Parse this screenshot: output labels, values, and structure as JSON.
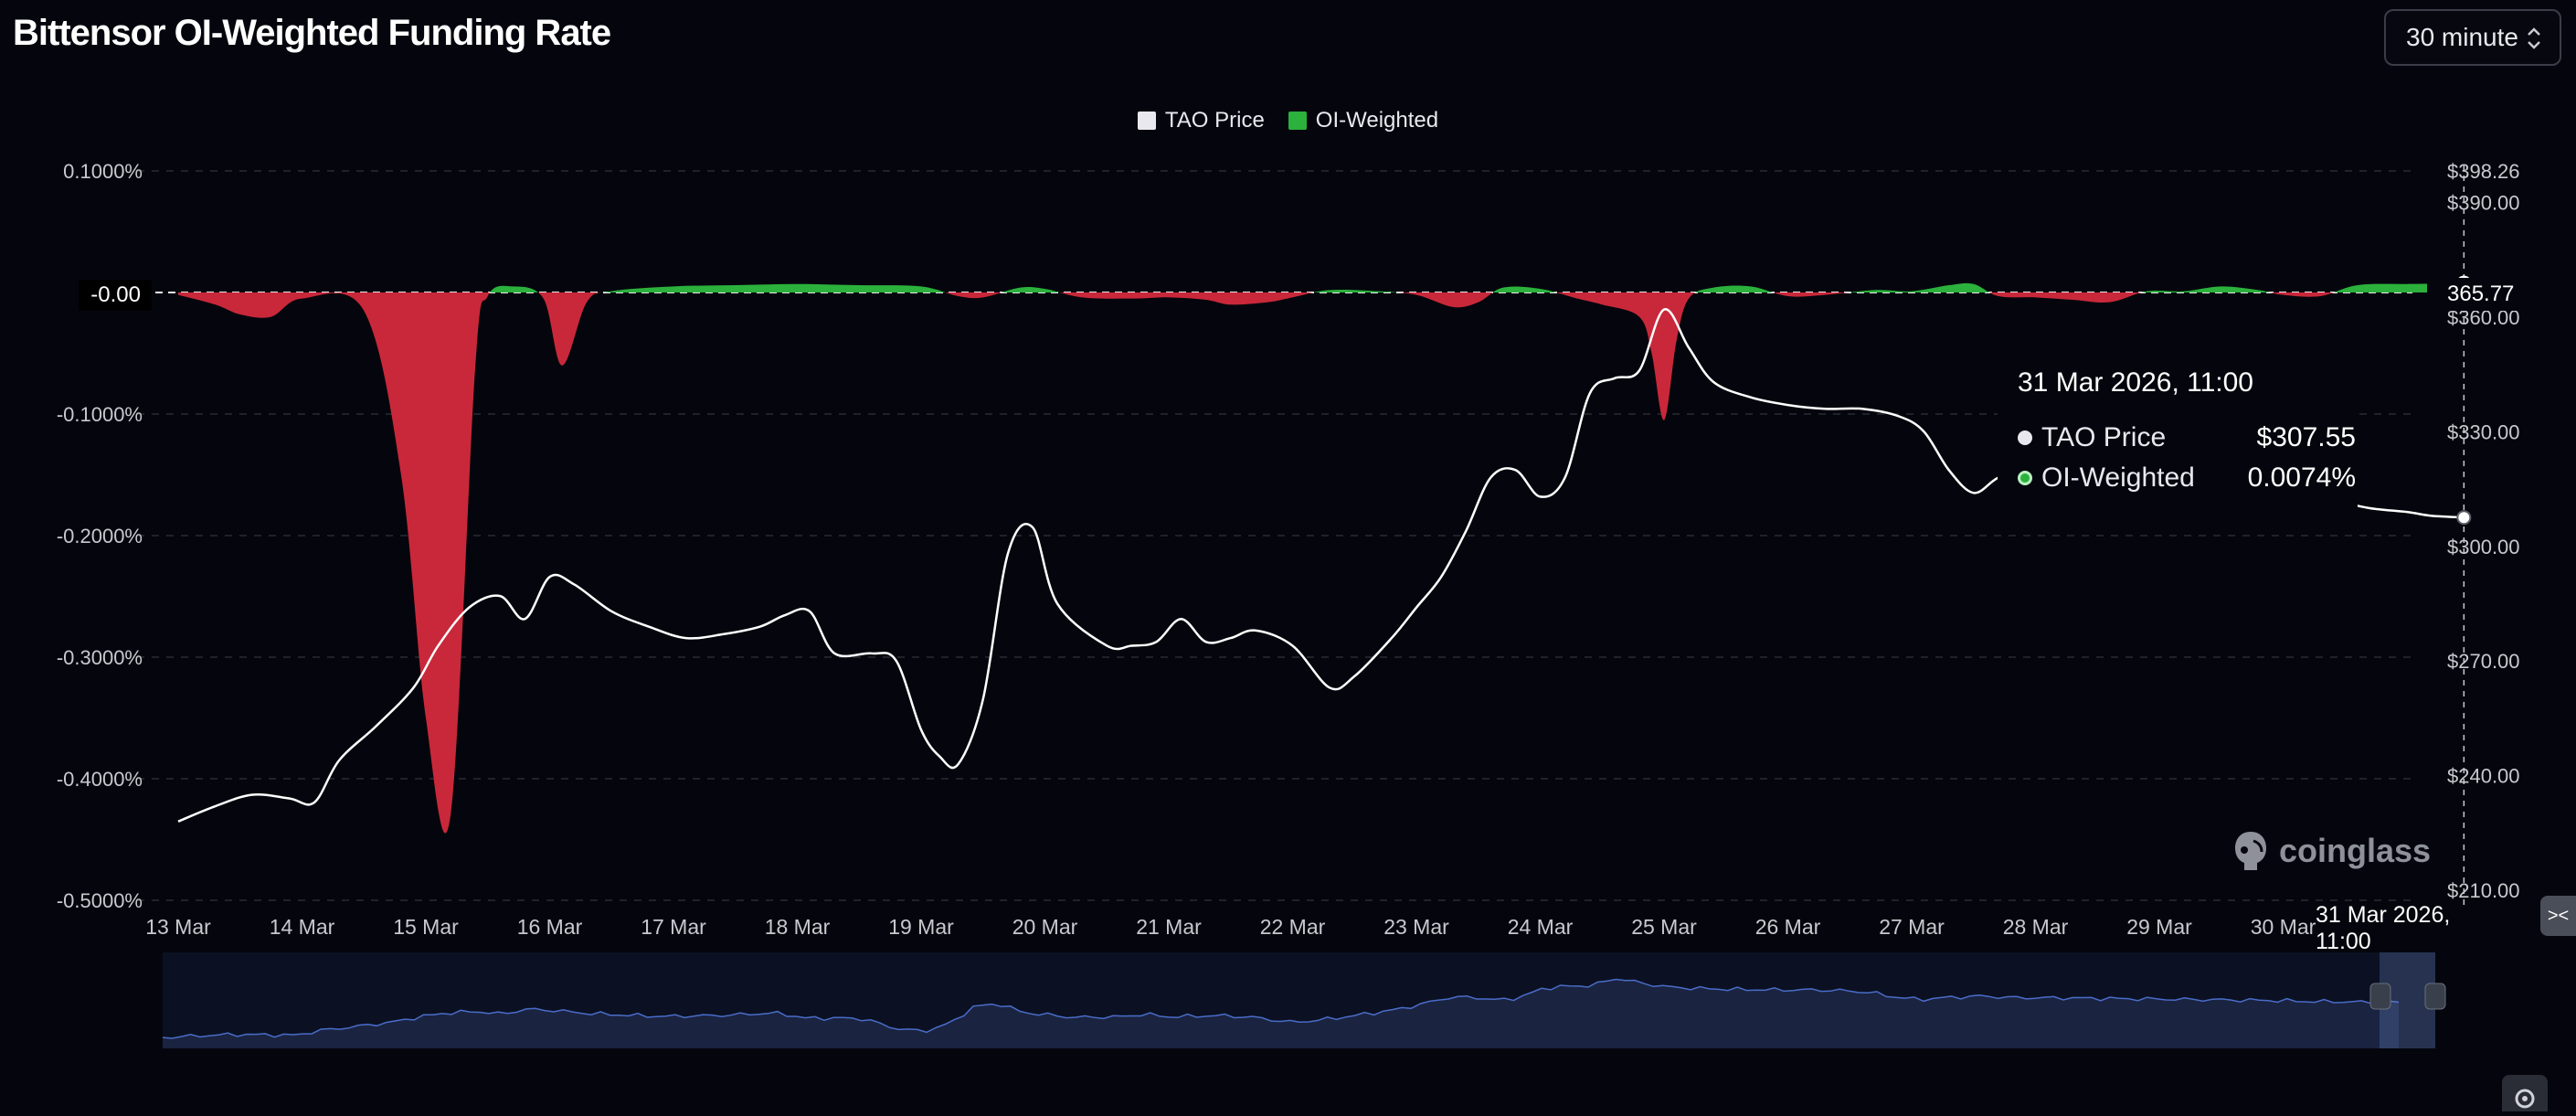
{
  "page": {
    "title": "Bittensor OI-Weighted Funding Rate",
    "interval": "30 minute",
    "brand": "coinglass"
  },
  "colors": {
    "background": "#05060d",
    "price_line": "#ffffff",
    "positive_fill": "#2bb13c",
    "negative_fill": "#c9283a",
    "grid": "#2a2c34",
    "navigator_fill": "#1a2340",
    "navigator_line": "#4a6cc9"
  },
  "icons": [
    "chevron-updown-icon",
    "coinglass-logo-icon",
    "code-icon",
    "gear-icon",
    "drag-handle-icon"
  ],
  "tooltip": {
    "time": "31 Mar 2026, 11:00",
    "rows": [
      {
        "label": "TAO Price",
        "value": "$307.55",
        "color": "#ffffff"
      },
      {
        "label": "OI-Weighted",
        "value": "0.0074%",
        "color": "#2bb13c"
      }
    ]
  },
  "crosshair": {
    "x_label": "31 Mar 2026, 11:00",
    "y_label": "365.77",
    "zero_label": "-0.00"
  },
  "chart_data": {
    "type": "area",
    "title": "Bittensor OI-Weighted Funding Rate",
    "legend": [
      "TAO Price",
      "OI-Weighted"
    ],
    "legend_position": "top-center",
    "grid": true,
    "x_ticks": [
      "13 Mar",
      "14 Mar",
      "15 Mar",
      "16 Mar",
      "17 Mar",
      "18 Mar",
      "19 Mar",
      "20 Mar",
      "21 Mar",
      "22 Mar",
      "23 Mar",
      "24 Mar",
      "25 Mar",
      "26 Mar",
      "27 Mar",
      "28 Mar",
      "29 Mar",
      "30 Mar"
    ],
    "y_left_ticks": [
      "0.1000%",
      "-0.1000%",
      "-0.2000%",
      "-0.3000%",
      "-0.4000%",
      "-0.5000%"
    ],
    "y_left_range": [
      -0.5,
      0.1
    ],
    "y_right_ticks": [
      "$398.26",
      "$390.00",
      "$360.00",
      "$330.00",
      "$300.00",
      "$270.00",
      "$240.00",
      "$210.00"
    ],
    "y_right_range": [
      210,
      398.26
    ],
    "series": [
      {
        "name": "OI-Weighted",
        "unit": "%",
        "x": [
          13.0,
          13.3,
          13.5,
          13.75,
          14.0,
          14.5,
          14.8,
          15.0,
          15.2,
          15.4,
          15.5,
          15.7,
          15.95,
          16.1,
          16.3,
          16.5,
          17.0,
          17.5,
          18.0,
          18.5,
          19.0,
          19.3,
          19.5,
          19.8,
          20.0,
          20.3,
          20.7,
          21.0,
          21.3,
          21.5,
          21.8,
          22.0,
          22.3,
          22.7,
          23.0,
          23.3,
          23.5,
          23.7,
          24.0,
          24.3,
          24.5,
          24.8,
          24.9,
          25.0,
          25.1,
          25.2,
          25.4,
          25.7,
          26.0,
          26.3,
          26.7,
          27.0,
          27.3,
          27.5,
          27.7,
          28.0,
          28.3,
          28.6,
          28.9,
          29.2,
          29.5,
          29.8,
          30.0,
          30.3,
          30.6,
          31.0,
          31.46
        ],
        "values": [
          -0.002,
          -0.01,
          -0.018,
          -0.02,
          -0.005,
          -0.015,
          -0.15,
          -0.35,
          -0.43,
          -0.06,
          -0.003,
          0.005,
          -0.005,
          -0.06,
          -0.008,
          0.001,
          0.005,
          0.006,
          0.007,
          0.006,
          0.005,
          -0.003,
          -0.004,
          0.004,
          0.003,
          -0.004,
          -0.005,
          -0.004,
          -0.006,
          -0.01,
          -0.008,
          -0.004,
          0.002,
          0.001,
          -0.002,
          -0.012,
          -0.008,
          0.004,
          0.003,
          -0.005,
          -0.01,
          -0.02,
          -0.05,
          -0.105,
          -0.04,
          -0.005,
          0.004,
          0.005,
          -0.003,
          -0.002,
          0.002,
          0.001,
          0.006,
          0.007,
          -0.003,
          -0.004,
          -0.006,
          -0.008,
          0.001,
          0.001,
          0.005,
          0.002,
          -0.002,
          -0.003,
          0.006,
          0.007,
          0.0074
        ]
      },
      {
        "name": "TAO Price",
        "unit": "$",
        "x": [
          13.0,
          13.3,
          13.6,
          13.9,
          14.1,
          14.3,
          14.6,
          14.9,
          15.1,
          15.35,
          15.6,
          15.8,
          16.0,
          16.2,
          16.5,
          16.8,
          17.1,
          17.4,
          17.7,
          17.9,
          18.1,
          18.3,
          18.6,
          18.8,
          19.0,
          19.15,
          19.3,
          19.5,
          19.7,
          19.9,
          20.1,
          20.5,
          20.7,
          20.9,
          21.1,
          21.3,
          21.5,
          21.7,
          22.0,
          22.3,
          22.5,
          22.8,
          23.0,
          23.2,
          23.4,
          23.6,
          23.8,
          24.0,
          24.2,
          24.4,
          24.6,
          24.8,
          25.0,
          25.2,
          25.4,
          25.7,
          26.0,
          26.3,
          26.6,
          26.9,
          27.1,
          27.3,
          27.5,
          27.7,
          28.0,
          28.3,
          28.6,
          28.9,
          29.2,
          29.5,
          29.8,
          30.1,
          30.4,
          30.7,
          31.0,
          31.2,
          31.46
        ],
        "values": [
          228,
          232,
          235,
          234,
          233,
          244,
          253,
          263,
          274,
          284,
          287,
          281,
          292,
          290,
          283,
          279,
          276,
          277,
          279,
          282,
          283,
          272,
          272,
          270,
          252,
          245,
          243,
          260,
          298,
          305,
          285,
          274,
          274,
          275,
          281,
          275,
          276,
          278,
          274,
          263,
          266,
          276,
          284,
          292,
          304,
          318,
          320,
          313,
          318,
          340,
          344,
          346,
          362,
          352,
          343,
          339,
          337,
          336,
          336,
          334,
          330,
          320,
          314,
          318,
          322,
          318,
          318,
          317,
          316,
          315,
          314,
          313,
          312,
          310,
          309,
          308,
          307.55
        ]
      }
    ],
    "crosshair_time": "31 Mar 2026, 11:00"
  }
}
